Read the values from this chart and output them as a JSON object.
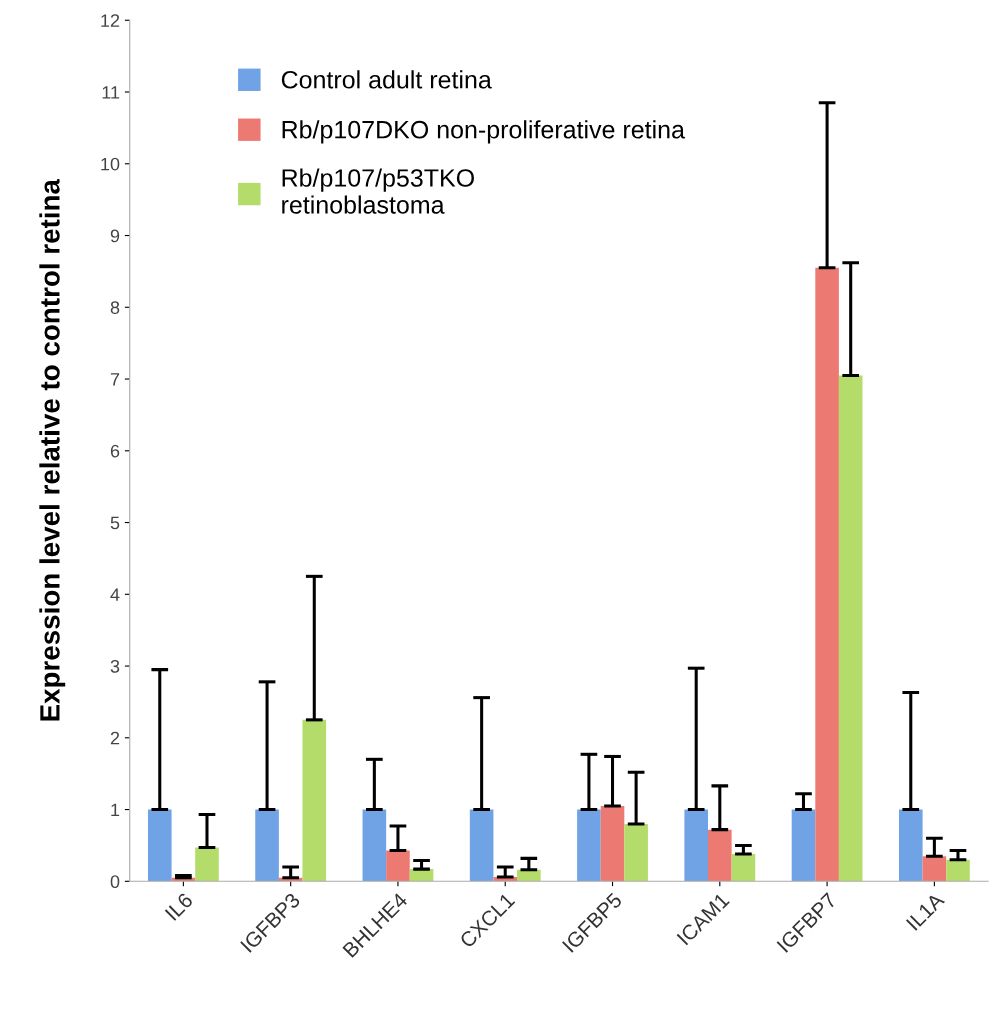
{
  "chart_data": {
    "type": "bar",
    "ylabel": "Expression level relative to control retina",
    "categories": [
      "IL6",
      "IGFBP3",
      "BHLHE4",
      "CXCL1",
      "IGFBP5",
      "ICAM1",
      "IGFBP7",
      "IL1A"
    ],
    "series": [
      {
        "name": "Control adult retina",
        "color": "#6fa3e6",
        "values": [
          1,
          1,
          1,
          1,
          1,
          1,
          1,
          1
        ],
        "errors": [
          [
            1,
            2.95
          ],
          [
            1,
            2.78
          ],
          [
            1,
            1.7
          ],
          [
            1,
            2.56
          ],
          [
            1,
            1.77
          ],
          [
            1,
            2.97
          ],
          [
            1,
            1.22
          ],
          [
            1,
            2.63
          ]
        ]
      },
      {
        "name": "Rb/p107DKO non-proliferative retina",
        "color": "#ec7a72",
        "values": [
          0.05,
          0.05,
          0.43,
          0.06,
          1.05,
          0.72,
          8.55,
          0.35
        ],
        "errors": [
          [
            0.05,
            0.08
          ],
          [
            0.05,
            0.2
          ],
          [
            0.43,
            0.77
          ],
          [
            0.06,
            0.2
          ],
          [
            1.05,
            1.74
          ],
          [
            0.72,
            1.33
          ],
          [
            8.55,
            10.85
          ],
          [
            0.35,
            0.6
          ]
        ]
      },
      {
        "name": "Rb/p107/p53TKO\nretinoblastoma",
        "color": "#b4dc6a",
        "values": [
          0.47,
          2.25,
          0.17,
          0.16,
          0.8,
          0.38,
          7.05,
          0.3
        ],
        "errors": [
          [
            0.47,
            0.93
          ],
          [
            2.25,
            4.25
          ],
          [
            0.17,
            0.29
          ],
          [
            0.16,
            0.32
          ],
          [
            0.8,
            1.52
          ],
          [
            0.38,
            0.5
          ],
          [
            7.05,
            8.62
          ],
          [
            0.3,
            0.43
          ]
        ]
      }
    ],
    "ylim": [
      0,
      12
    ],
    "yticks": [
      0,
      1,
      2,
      3,
      4,
      5,
      6,
      7,
      8,
      9,
      10,
      11,
      12
    ],
    "grid": false,
    "legend": "top left"
  }
}
